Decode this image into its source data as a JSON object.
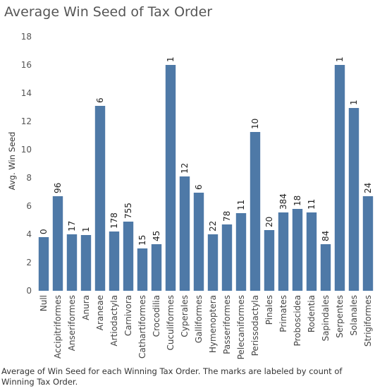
{
  "chart_data": {
    "type": "bar",
    "title": "Average Win Seed of Tax Order",
    "ylabel": "Avg. Win Seed",
    "xlabel": "",
    "ylim": [
      0,
      18
    ],
    "yticks": [
      0,
      2,
      4,
      6,
      8,
      10,
      12,
      14,
      16,
      18
    ],
    "grid": false,
    "bar_color": "#4e79a7",
    "categories": [
      "Null",
      "Accipitriformes",
      "Anseriformes",
      "Anura",
      "Araneae",
      "Artiodactyla",
      "Carnivora",
      "Cathartiformes",
      "Crocodilia",
      "Cuculiformes",
      "Cyperales",
      "Galliformes",
      "Hymenoptera",
      "Passeriformes",
      "Pelecaniformes",
      "Perissodactyla",
      "Pinales",
      "Primates",
      "Proboscidea",
      "Rodentia",
      "Sapindales",
      "Serpentes",
      "Solanales",
      "Strigiformes"
    ],
    "values": [
      3.8,
      6.7,
      4.0,
      3.95,
      13.1,
      4.2,
      4.9,
      3.0,
      3.3,
      16.0,
      8.1,
      6.95,
      4.0,
      4.7,
      5.5,
      11.25,
      4.3,
      5.55,
      5.8,
      5.55,
      3.3,
      16.0,
      12.95,
      6.7
    ],
    "data_labels": [
      "0",
      "96",
      "17",
      "1",
      "6",
      "178",
      "755",
      "15",
      "45",
      "1",
      "12",
      "6",
      "22",
      "78",
      "11",
      "10",
      "20",
      "384",
      "18",
      "11",
      "84",
      "1",
      "1",
      "24"
    ]
  },
  "caption": "Average of Win Seed for each Winning Tax Order.  The marks are labeled by count of Winning Tax Order."
}
